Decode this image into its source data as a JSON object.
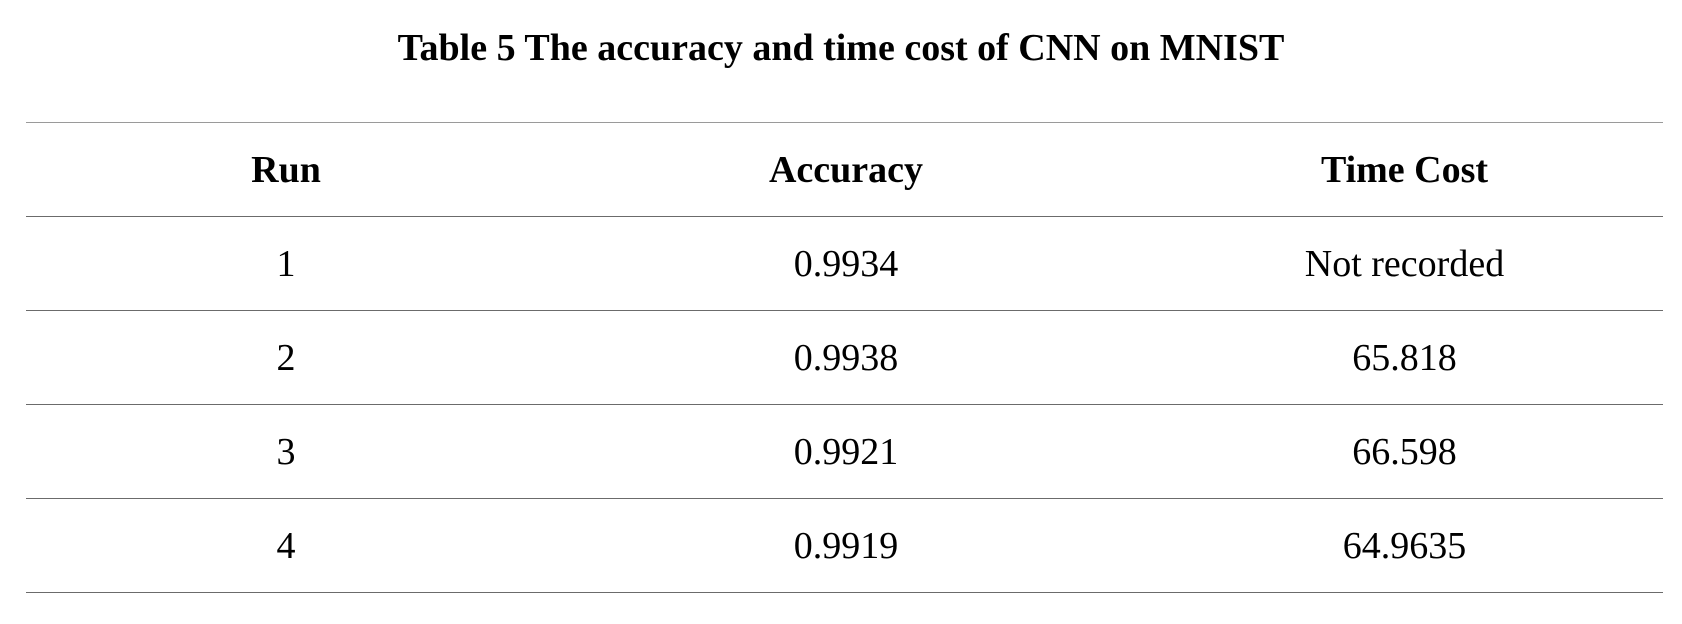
{
  "caption": "Table 5 The accuracy and time cost of CNN on MNIST",
  "table": {
    "headers": [
      "Run",
      "Accuracy",
      "Time Cost"
    ],
    "rows": [
      [
        "1",
        "0.9934",
        "Not recorded"
      ],
      [
        "2",
        "0.9938",
        "65.818"
      ],
      [
        "3",
        "0.9921",
        "66.598"
      ],
      [
        "4",
        "0.9919",
        "64.9635"
      ]
    ]
  }
}
